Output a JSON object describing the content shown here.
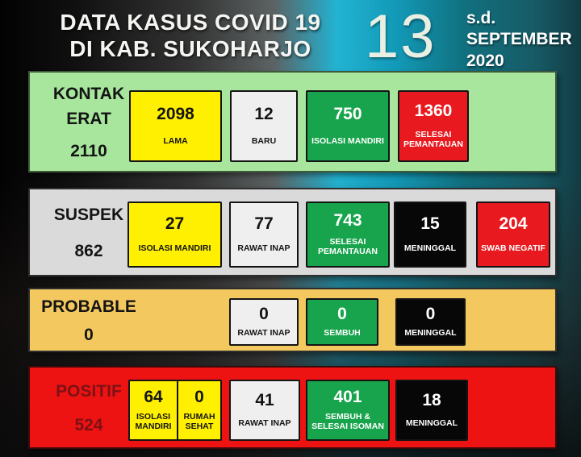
{
  "header": {
    "title_line1": "DATA KASUS COVID 19",
    "title_line2": "DI KAB. SUKOHARJO",
    "day": "13",
    "period_line1": "s.d.",
    "period_line2": "SEPTEMBER",
    "period_line3": "2020"
  },
  "rows": [
    {
      "title": "KONTAK\nERAT",
      "total": "2110",
      "boxes": [
        {
          "value": "2098",
          "label": "LAMA",
          "color": "yellow"
        },
        {
          "value": "12",
          "label": "BARU",
          "color": "white"
        },
        {
          "value": "750",
          "label": "ISOLASI MANDIRI",
          "color": "green"
        },
        {
          "value": "1360",
          "label": "SELESAI\nPEMANTAUAN",
          "color": "red"
        }
      ]
    },
    {
      "title": "SUSPEK",
      "total": "862",
      "boxes": [
        {
          "value": "27",
          "label": "ISOLASI MANDIRI",
          "color": "yellow"
        },
        {
          "value": "77",
          "label": "RAWAT INAP",
          "color": "white"
        },
        {
          "value": "743",
          "label": "SELESAI\nPEMANTAUAN",
          "color": "green"
        },
        {
          "value": "15",
          "label": "MENINGGAL",
          "color": "black"
        },
        {
          "value": "204",
          "label": "SWAB NEGATIF",
          "color": "red"
        }
      ]
    },
    {
      "title": "PROBABLE",
      "total": "0",
      "boxes": [
        {
          "value": "0",
          "label": "RAWAT INAP",
          "color": "white"
        },
        {
          "value": "0",
          "label": "SEMBUH",
          "color": "green"
        },
        {
          "value": "0",
          "label": "MENINGGAL",
          "color": "black"
        }
      ]
    },
    {
      "title": "POSITIF",
      "total": "524",
      "boxes": [
        {
          "value": "64",
          "label": "ISOLASI\nMANDIRI",
          "color": "yellow"
        },
        {
          "value": "0",
          "label": "RUMAH\nSEHAT",
          "color": "yellow"
        },
        {
          "value": "41",
          "label": "RAWAT INAP",
          "color": "white"
        },
        {
          "value": "401",
          "label": "SEMBUH &\nSELESAI ISOMAN",
          "color": "green"
        },
        {
          "value": "18",
          "label": "MENINGGAL",
          "color": "black"
        }
      ]
    }
  ],
  "palette": {
    "panel_green": "#a7e69c",
    "panel_gray": "#dadada",
    "panel_amber": "#f3c85f",
    "panel_red": "#ee1313",
    "box_yellow": "#ffef00",
    "box_white": "#efefef",
    "box_green": "#18a44c",
    "box_red": "#e8191f",
    "box_black": "#070707",
    "background_teal": "#22b3d2",
    "positif_text": "#7e1114",
    "title_text": "#f5f5f2"
  },
  "chart_data": {
    "type": "table",
    "title": "DATA KASUS COVID 19 DI KAB. SUKOHARJO",
    "as_of": "s.d. 13 SEPTEMBER 2020",
    "categories": [
      "KONTAK ERAT",
      "SUSPEK",
      "PROBABLE",
      "POSITIF"
    ],
    "totals": [
      2110,
      862,
      0,
      524
    ],
    "series": [
      {
        "name": "KONTAK ERAT",
        "total": 2110,
        "breakdown": {
          "LAMA": 2098,
          "BARU": 12,
          "ISOLASI MANDIRI": 750,
          "SELESAI PEMANTAUAN": 1360
        }
      },
      {
        "name": "SUSPEK",
        "total": 862,
        "breakdown": {
          "ISOLASI MANDIRI": 27,
          "RAWAT INAP": 77,
          "SELESAI PEMANTAUAN": 743,
          "MENINGGAL": 15,
          "SWAB NEGATIF": 204
        }
      },
      {
        "name": "PROBABLE",
        "total": 0,
        "breakdown": {
          "RAWAT INAP": 0,
          "SEMBUH": 0,
          "MENINGGAL": 0
        }
      },
      {
        "name": "POSITIF",
        "total": 524,
        "breakdown": {
          "ISOLASI MANDIRI": 64,
          "RUMAH SEHAT": 0,
          "RAWAT INAP": 41,
          "SEMBUH & SELESAI ISOMAN": 401,
          "MENINGGAL": 18
        }
      }
    ]
  }
}
